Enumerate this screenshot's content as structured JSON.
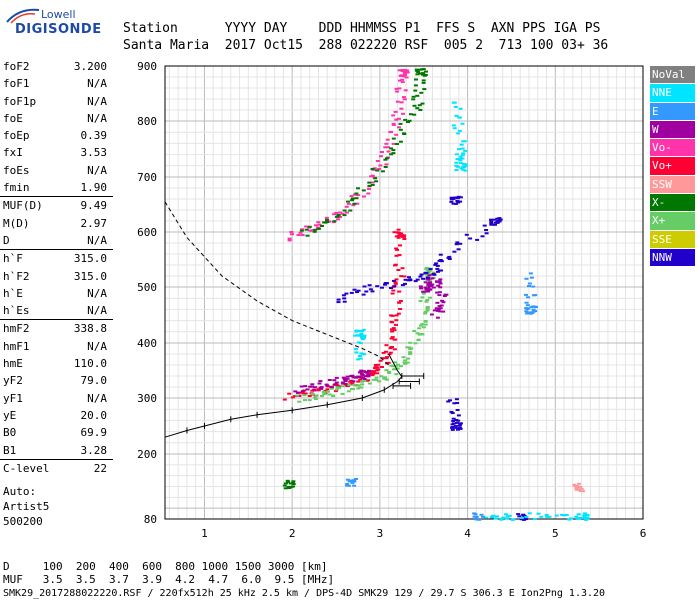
{
  "logo": {
    "line1": "Lowell",
    "line2": "DIGISONDE"
  },
  "header": {
    "line1": "Station      YYYY DAY    DDD HHMMSS P1  FFS S  AXN PPS IGA PS",
    "line2": "Santa Maria  2017 Oct15  288 022220 RSF  005 2  713 100 03+ 36"
  },
  "params": [
    {
      "k": "foF2",
      "v": "3.200"
    },
    {
      "k": "foF1",
      "v": "N/A"
    },
    {
      "k": "foF1p",
      "v": "N/A"
    },
    {
      "k": "foE",
      "v": "N/A"
    },
    {
      "k": "foEp",
      "v": "0.39"
    },
    {
      "k": "fxI",
      "v": "3.53"
    },
    {
      "k": "foEs",
      "v": "N/A"
    },
    {
      "k": "fmin",
      "v": "1.90"
    },
    {
      "k": "MUF(D)",
      "v": "9.49"
    },
    {
      "k": "M(D)",
      "v": "2.97"
    },
    {
      "k": "D",
      "v": "N/A"
    },
    {
      "k": "h`F",
      "v": "315.0"
    },
    {
      "k": "h`F2",
      "v": "315.0"
    },
    {
      "k": "h`E",
      "v": "N/A"
    },
    {
      "k": "h`Es",
      "v": "N/A"
    },
    {
      "k": "hmF2",
      "v": "338.8"
    },
    {
      "k": "hmF1",
      "v": "N/A"
    },
    {
      "k": "hmE",
      "v": "110.0"
    },
    {
      "k": "yF2",
      "v": "79.0"
    },
    {
      "k": "yF1",
      "v": "N/A"
    },
    {
      "k": "yE",
      "v": "20.0"
    },
    {
      "k": "B0",
      "v": "69.9"
    },
    {
      "k": "B1",
      "v": "3.28"
    },
    {
      "k": "C-level",
      "v": "22"
    }
  ],
  "auto": [
    "Auto:",
    "Artist5",
    "500200"
  ],
  "legend": [
    {
      "label": "NoVal",
      "color": "#808080"
    },
    {
      "label": "NNE",
      "color": "#00e5ff"
    },
    {
      "label": "E",
      "color": "#3399ff"
    },
    {
      "label": "W",
      "color": "#a000a0"
    },
    {
      "label": "Vo-",
      "color": "#ff33aa"
    },
    {
      "label": "Vo+",
      "color": "#ff0033"
    },
    {
      "label": "SSW",
      "color": "#ff9999"
    },
    {
      "label": "X-",
      "color": "#007700"
    },
    {
      "label": "X+",
      "color": "#66cc66"
    },
    {
      "label": "SSE",
      "color": "#cccc00"
    },
    {
      "label": "NNW",
      "color": "#2200cc"
    }
  ],
  "footer": {
    "line1": "D     100  200  400  600  800 1000 1500 3000 [km]",
    "line2": "MUF   3.5  3.5  3.7  3.9  4.2  4.7  6.0  9.5 [MHz]",
    "line3": "SMK29_2017288022220.RSF / 220fx512h 25 kHz 2.5 km / DPS-4D SMK29 129 / 29.7 S 306.3 E Ion2Png 1.3.20"
  },
  "chart_data": {
    "type": "scatter",
    "title": "",
    "xlabel": "",
    "ylabel": "",
    "xlim": [
      0.55,
      6.0
    ],
    "ylim": [
      80,
      900
    ],
    "xticks": [
      1,
      2,
      3,
      4,
      5,
      6
    ],
    "yticks": [
      80,
      200,
      300,
      400,
      500,
      600,
      700,
      800,
      900
    ],
    "grid": true,
    "series": [
      {
        "name": "Vo+",
        "color": "#ff0033",
        "points": [
          [
            1.95,
            305
          ],
          [
            2.2,
            312
          ],
          [
            2.5,
            322
          ],
          [
            2.7,
            332
          ],
          [
            2.9,
            348
          ],
          [
            3.0,
            365
          ],
          [
            3.1,
            400
          ],
          [
            3.15,
            450
          ],
          [
            3.2,
            520
          ],
          [
            3.2,
            600
          ]
        ]
      },
      {
        "name": "X+",
        "color": "#66cc66",
        "points": [
          [
            2.05,
            300
          ],
          [
            2.4,
            310
          ],
          [
            2.7,
            322
          ],
          [
            3.0,
            338
          ],
          [
            3.2,
            360
          ],
          [
            3.35,
            390
          ],
          [
            3.45,
            430
          ],
          [
            3.5,
            480
          ],
          [
            3.55,
            530
          ]
        ]
      },
      {
        "name": "W",
        "color": "#a000a0",
        "points": [
          [
            2.0,
            315
          ],
          [
            2.3,
            325
          ],
          [
            2.6,
            335
          ],
          [
            2.8,
            345
          ],
          [
            3.6,
            450
          ],
          [
            3.7,
            480
          ],
          [
            3.6,
            520
          ],
          [
            3.5,
            500
          ]
        ]
      },
      {
        "name": "NNW",
        "color": "#2200cc",
        "points": [
          [
            2.5,
            480
          ],
          [
            2.9,
            500
          ],
          [
            3.3,
            510
          ],
          [
            3.6,
            530
          ],
          [
            3.75,
            560
          ],
          [
            4.3,
            620
          ],
          [
            3.8,
            300
          ],
          [
            3.85,
            250
          ],
          [
            4.6,
            85
          ],
          [
            3.85,
            660
          ]
        ]
      },
      {
        "name": "NNE",
        "color": "#00e5ff",
        "points": [
          [
            3.85,
            840
          ],
          [
            3.9,
            760
          ],
          [
            3.9,
            720
          ],
          [
            4.2,
            85
          ],
          [
            4.5,
            85
          ],
          [
            5.0,
            85
          ],
          [
            5.3,
            85
          ],
          [
            2.75,
            370
          ],
          [
            2.75,
            420
          ]
        ]
      },
      {
        "name": "E",
        "color": "#3399ff",
        "points": [
          [
            4.7,
            520
          ],
          [
            4.7,
            460
          ],
          [
            2.65,
            150
          ],
          [
            4.1,
            85
          ]
        ]
      },
      {
        "name": "Vo- F2 second hop",
        "color": "#ff33aa",
        "points": [
          [
            1.95,
            592
          ],
          [
            2.3,
            612
          ],
          [
            2.6,
            640
          ],
          [
            2.9,
            700
          ],
          [
            3.1,
            760
          ],
          [
            3.2,
            830
          ],
          [
            3.25,
            890
          ]
        ]
      },
      {
        "name": "X- second hop",
        "color": "#007700",
        "points": [
          [
            2.1,
            600
          ],
          [
            2.5,
            630
          ],
          [
            2.85,
            690
          ],
          [
            3.15,
            760
          ],
          [
            3.4,
            830
          ],
          [
            3.45,
            890
          ],
          [
            1.95,
            145
          ]
        ]
      },
      {
        "name": "SSW",
        "color": "#ff9999",
        "points": [
          [
            5.25,
            140
          ]
        ]
      }
    ],
    "profile": [
      [
        0.55,
        230
      ],
      [
        0.8,
        242
      ],
      [
        1.0,
        250
      ],
      [
        1.3,
        262
      ],
      [
        1.6,
        270
      ],
      [
        2.0,
        278
      ],
      [
        2.4,
        288
      ],
      [
        2.8,
        300
      ],
      [
        3.05,
        315
      ],
      [
        3.2,
        330
      ],
      [
        3.25,
        338.8
      ],
      [
        3.2,
        350
      ],
      [
        3.1,
        380
      ]
    ],
    "virtual_height_trace": [
      [
        0.55,
        655
      ],
      [
        0.8,
        590
      ],
      [
        1.2,
        520
      ],
      [
        1.6,
        475
      ],
      [
        2.0,
        440
      ],
      [
        2.4,
        415
      ],
      [
        2.8,
        390
      ],
      [
        3.0,
        375
      ],
      [
        3.1,
        360
      ]
    ]
  }
}
